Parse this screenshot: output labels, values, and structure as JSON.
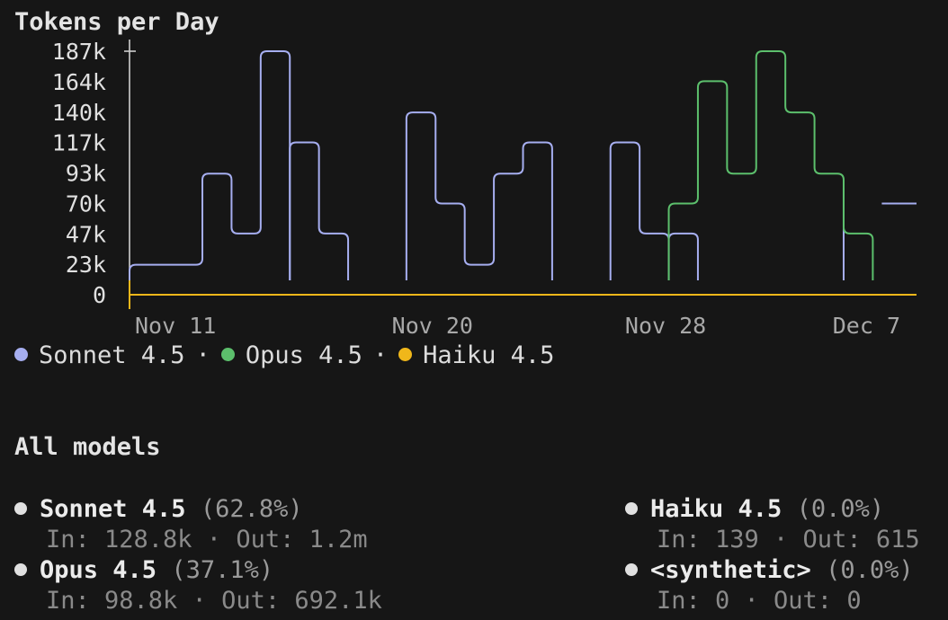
{
  "chart_data": {
    "type": "line",
    "title": "Tokens per Day",
    "y_ticks": [
      "187k",
      "164k",
      "140k",
      "117k",
      "93k",
      "70k",
      "47k",
      "23k",
      "0"
    ],
    "ylim": [
      0,
      187000
    ],
    "x_ticks": [
      "Nov 11",
      "Nov 20",
      "Nov 28",
      "Dec 7"
    ],
    "x_tick_days": [
      11,
      20,
      28,
      37
    ],
    "xlim": [
      11,
      38
    ],
    "series": [
      {
        "name": "Sonnet 4.5",
        "color": "#a6aef0",
        "segments": [
          [
            [
              11,
              23000
            ],
            [
              12,
              23000
            ],
            [
              13,
              23000
            ],
            [
              14,
              93000
            ],
            [
              15,
              47000
            ],
            [
              16,
              187000
            ]
          ],
          [
            [
              17,
              117000
            ],
            [
              18,
              47000
            ]
          ],
          [
            [
              21,
              140000
            ],
            [
              22,
              70000
            ],
            [
              23,
              23000
            ],
            [
              24,
              93000
            ],
            [
              25,
              117000
            ]
          ],
          [
            [
              28,
              117000
            ],
            [
              29,
              47000
            ]
          ],
          [
            [
              30,
              47000
            ]
          ],
          [
            [
              36,
              82000
            ]
          ],
          [
            [
              37,
              70000
            ]
          ]
        ]
      },
      {
        "name": "Opus 4.5",
        "color": "#5cbf6c",
        "segments": [
          [
            [
              30,
              70000
            ],
            [
              31,
              164000
            ],
            [
              32,
              93000
            ],
            [
              33,
              187000
            ],
            [
              34,
              140000
            ],
            [
              35,
              93000
            ],
            [
              36,
              47000
            ]
          ]
        ]
      },
      {
        "name": "Haiku 4.5",
        "color": "#f0b71a",
        "segments": [
          [
            [
              11,
              0
            ],
            [
              37,
              0
            ]
          ]
        ]
      }
    ],
    "legend_placement": "bottom-left"
  },
  "legend": {
    "separator": "·",
    "items": [
      {
        "label": "Sonnet 4.5",
        "color": "#a6aef0"
      },
      {
        "label": "Opus 4.5",
        "color": "#5cbf6c"
      },
      {
        "label": "Haiku 4.5",
        "color": "#f0b71a"
      }
    ]
  },
  "summary": {
    "title": "All models",
    "models": [
      {
        "name": "Sonnet 4.5",
        "pct": "(62.8%)",
        "io": "In: 128.8k · Out: 1.2m"
      },
      {
        "name": "Opus 4.5",
        "pct": "(37.1%)",
        "io": "In: 98.8k · Out: 692.1k"
      },
      {
        "name": "Haiku 4.5",
        "pct": "(0.0%)",
        "io": "In: 139 · Out: 615"
      },
      {
        "name": "<synthetic>",
        "pct": "(0.0%)",
        "io": "In: 0 · Out: 0"
      }
    ]
  }
}
